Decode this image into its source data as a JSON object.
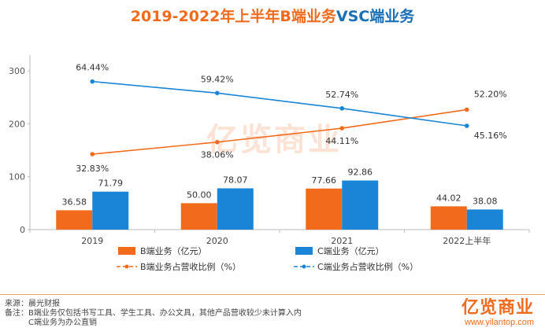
{
  "title_part1": "2019-2022年上半年B端业务",
  "title_part2": "VSC端业务",
  "chart_data": {
    "type": "bar",
    "categories": [
      "2019",
      "2020",
      "2021",
      "2022上半年"
    ],
    "y_ticks": [
      0,
      100,
      200,
      300
    ],
    "ylim": [
      0,
      330
    ],
    "series": [
      {
        "name": "B端业务（亿元）",
        "kind": "bar",
        "color": "#f26b1d",
        "values": [
          36.58,
          50.0,
          77.66,
          44.02
        ],
        "labels": [
          "36.58",
          "50.00",
          "77.66",
          "44.02"
        ]
      },
      {
        "name": "C端业务（亿元）",
        "kind": "bar",
        "color": "#1a85d6",
        "values": [
          71.79,
          78.07,
          92.86,
          38.08
        ],
        "labels": [
          "71.79",
          "78.07",
          "92.86",
          "38.08"
        ]
      },
      {
        "name": "B端业务占营收比例（%）",
        "kind": "line",
        "color": "#f26b1d",
        "values": [
          32.83,
          38.06,
          44.11,
          52.2
        ],
        "labels": [
          "32.83%",
          "38.06%",
          "44.11%",
          "52.20%"
        ]
      },
      {
        "name": "C端业务占营收比例（%）",
        "kind": "line",
        "color": "#1a85d6",
        "values": [
          64.44,
          59.42,
          52.74,
          45.16
        ],
        "labels": [
          "64.44%",
          "59.42%",
          "52.74%",
          "45.16%"
        ]
      }
    ],
    "legend_position": "bottom"
  },
  "watermark": "亿览商业",
  "footer": {
    "source": "来源：晨光财报",
    "note1": "备注：B端业务仅包括书写工具、学生工具、办公文具，其他产品营收较少未计算入内",
    "note2": "C端业务为办公直销"
  },
  "brand": {
    "logo": "亿览商业",
    "url": "www.yilantop.com"
  }
}
